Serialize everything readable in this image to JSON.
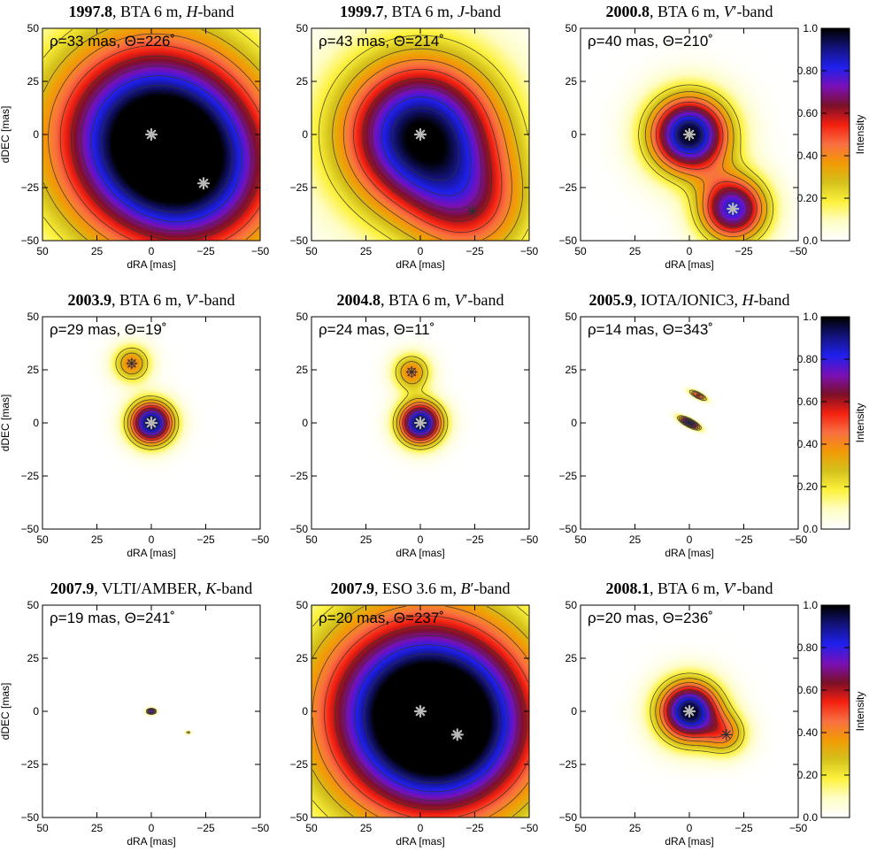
{
  "chart_data": [
    {
      "type": "heatmap",
      "row": 0,
      "col": 0,
      "title": {
        "epoch": "1997.8",
        "rest": ", BTA 6 m, ",
        "band_letter": "H",
        "band_suffix": "-band"
      },
      "annotation": "ρ=33 mas, Θ=226˚",
      "xlabel": "dRA [mas]",
      "ylabel": "dDEC [mas]",
      "xlim": [
        50,
        -50
      ],
      "ylim": [
        -50,
        50
      ],
      "xticks": [
        50,
        25,
        0,
        -25,
        -50
      ],
      "yticks": [
        -50,
        -25,
        0,
        25,
        50
      ],
      "components": [
        {
          "x": 0,
          "y": 0,
          "flux": 1.0,
          "width": 34
        },
        {
          "x": -24,
          "y": -23,
          "flux": 0.45,
          "width": 30
        }
      ],
      "stars": [
        {
          "x": 0,
          "y": 0,
          "style": "grey"
        },
        {
          "x": -24,
          "y": -23,
          "style": "grey"
        }
      ],
      "levels": [
        0.2,
        0.3,
        0.4,
        0.5,
        0.6,
        0.7,
        0.8,
        0.9
      ]
    },
    {
      "type": "heatmap",
      "row": 0,
      "col": 1,
      "title": {
        "epoch": "1999.7",
        "rest": ", BTA 6 m, ",
        "band_letter": "J",
        "band_suffix": "-band"
      },
      "annotation": "ρ=43 mas, Θ=214˚",
      "xlabel": "dRA [mas]",
      "ylabel": "",
      "xlim": [
        50,
        -50
      ],
      "ylim": [
        -50,
        50
      ],
      "xticks": [
        50,
        25,
        0,
        -25,
        -50
      ],
      "yticks": [
        -50,
        -25,
        0,
        25,
        50
      ],
      "components": [
        {
          "x": 0,
          "y": 0,
          "flux": 1.0,
          "width": 26
        },
        {
          "x": -24,
          "y": -36,
          "flux": 0.4,
          "width": 20
        }
      ],
      "stars": [
        {
          "x": 0,
          "y": 0,
          "style": "grey"
        },
        {
          "x": -24,
          "y": -36,
          "style": "dark"
        }
      ],
      "levels": [
        0.2,
        0.3,
        0.4,
        0.5,
        0.6,
        0.7,
        0.8,
        0.9
      ]
    },
    {
      "type": "heatmap",
      "row": 0,
      "col": 2,
      "title": {
        "epoch": "2000.8",
        "rest": ", BTA 6 m, ",
        "band_letter": "V",
        "band_suffix": "′-band"
      },
      "annotation": "ρ=40 mas, Θ=210˚",
      "xlabel": "dRA [mas]",
      "ylabel": "",
      "xlim": [
        50,
        -50
      ],
      "ylim": [
        -50,
        50
      ],
      "xticks": [
        50,
        25,
        0,
        -25,
        -50
      ],
      "yticks": [
        -50,
        -25,
        0,
        25,
        50
      ],
      "components": [
        {
          "x": 0,
          "y": 0,
          "flux": 1.0,
          "width": 13
        },
        {
          "x": -20,
          "y": -35,
          "flux": 0.82,
          "width": 11
        }
      ],
      "stars": [
        {
          "x": 0,
          "y": 0,
          "style": "grey"
        },
        {
          "x": -20,
          "y": -35,
          "style": "grey"
        }
      ],
      "levels": [
        0.2,
        0.3,
        0.4,
        0.5,
        0.6,
        0.7,
        0.8,
        0.9
      ]
    },
    {
      "type": "heatmap",
      "row": 1,
      "col": 0,
      "title": {
        "epoch": "2003.9",
        "rest": ", BTA 6 m, ",
        "band_letter": "V",
        "band_suffix": "′-band"
      },
      "annotation": "ρ=29 mas, Θ=19˚",
      "xlabel": "dRA [mas]",
      "ylabel": "dDEC [mas]",
      "xlim": [
        50,
        -50
      ],
      "ylim": [
        -50,
        50
      ],
      "xticks": [
        50,
        25,
        0,
        -25,
        -50
      ],
      "yticks": [
        -50,
        -25,
        0,
        25,
        50
      ],
      "components": [
        {
          "x": 0,
          "y": 0,
          "flux": 1.0,
          "width": 7
        },
        {
          "x": 9,
          "y": 28,
          "flux": 0.42,
          "width": 6
        }
      ],
      "stars": [
        {
          "x": 0,
          "y": 0,
          "style": "grey"
        },
        {
          "x": 9,
          "y": 28,
          "style": "dark"
        }
      ],
      "levels": [
        0.2,
        0.3,
        0.4,
        0.5,
        0.6,
        0.7,
        0.8,
        0.9
      ]
    },
    {
      "type": "heatmap",
      "row": 1,
      "col": 1,
      "title": {
        "epoch": "2004.8",
        "rest": ", BTA 6 m, ",
        "band_letter": "V",
        "band_suffix": "′-band"
      },
      "annotation": "ρ=24 mas, Θ=11˚",
      "xlabel": "dRA [mas]",
      "ylabel": "",
      "xlim": [
        50,
        -50
      ],
      "ylim": [
        -50,
        50
      ],
      "xticks": [
        50,
        25,
        0,
        -25,
        -50
      ],
      "yticks": [
        -50,
        -25,
        0,
        25,
        50
      ],
      "components": [
        {
          "x": 0,
          "y": 0,
          "flux": 1.0,
          "width": 7
        },
        {
          "x": 4,
          "y": 24,
          "flux": 0.42,
          "width": 6
        }
      ],
      "stars": [
        {
          "x": 0,
          "y": 0,
          "style": "grey"
        },
        {
          "x": 4,
          "y": 24,
          "style": "dark"
        }
      ],
      "levels": [
        0.2,
        0.3,
        0.4,
        0.5,
        0.6,
        0.7,
        0.8,
        0.9
      ]
    },
    {
      "type": "heatmap",
      "row": 1,
      "col": 2,
      "title": {
        "epoch": "2005.9",
        "rest": ", IOTA/IONIC3, ",
        "band_letter": "H",
        "band_suffix": "-band"
      },
      "annotation": "ρ=14 mas, Θ=343˚",
      "xlabel": "dRA [mas]",
      "ylabel": "",
      "xlim": [
        50,
        -50
      ],
      "ylim": [
        -50,
        50
      ],
      "xticks": [
        50,
        25,
        0,
        -25,
        -50
      ],
      "yticks": [
        -50,
        -25,
        0,
        25,
        50
      ],
      "components": [
        {
          "x": 0,
          "y": 0,
          "flux": 1.0,
          "width": 3.5,
          "elong": 3.2,
          "angle": -28
        },
        {
          "x": -4,
          "y": 13,
          "flux": 0.6,
          "width": 3,
          "elong": 3.2,
          "angle": -28
        }
      ],
      "stars": [],
      "levels": [
        0.2,
        0.3,
        0.4,
        0.5,
        0.6,
        0.7,
        0.8,
        0.9
      ]
    },
    {
      "type": "heatmap",
      "row": 2,
      "col": 0,
      "title": {
        "epoch": "2007.9",
        "rest": ", VLTI/AMBER, ",
        "band_letter": "K",
        "band_suffix": "-band"
      },
      "annotation": "ρ=19 mas, Θ=241˚",
      "xlabel": "dRA [mas]",
      "ylabel": "dDEC [mas]",
      "xlim": [
        50,
        -50
      ],
      "ylim": [
        -50,
        50
      ],
      "xticks": [
        50,
        25,
        0,
        -25,
        -50
      ],
      "yticks": [
        -50,
        -25,
        0,
        25,
        50
      ],
      "components": [
        {
          "x": 0,
          "y": 0,
          "flux": 1.0,
          "width": 1.3,
          "elong": 1.6,
          "angle": 0
        },
        {
          "x": -17,
          "y": -10,
          "flux": 0.32,
          "width": 0.9,
          "elong": 1.6,
          "angle": 0
        }
      ],
      "stars": [],
      "levels": [
        0.2,
        0.3,
        0.4,
        0.5,
        0.6,
        0.7,
        0.8,
        0.9
      ]
    },
    {
      "type": "heatmap",
      "row": 2,
      "col": 1,
      "title": {
        "epoch": "2007.9",
        "rest": ", ESO 3.6 m, ",
        "band_letter": "B",
        "band_suffix": "′-band"
      },
      "annotation": "ρ=20 mas, Θ=237˚",
      "xlabel": "dRA [mas]",
      "ylabel": "",
      "xlim": [
        50,
        -50
      ],
      "ylim": [
        -50,
        50
      ],
      "xticks": [
        50,
        25,
        0,
        -25,
        -50
      ],
      "yticks": [
        -50,
        -25,
        0,
        25,
        50
      ],
      "components": [
        {
          "x": 0,
          "y": 0,
          "flux": 1.0,
          "width": 35
        },
        {
          "x": -17,
          "y": -11,
          "flux": 0.4,
          "width": 30
        }
      ],
      "stars": [
        {
          "x": 0,
          "y": 0,
          "style": "grey"
        },
        {
          "x": -17,
          "y": -11,
          "style": "grey"
        }
      ],
      "levels": [
        0.2,
        0.3,
        0.4,
        0.5,
        0.6,
        0.7,
        0.8,
        0.9
      ]
    },
    {
      "type": "heatmap",
      "row": 2,
      "col": 2,
      "title": {
        "epoch": "2008.1",
        "rest": ", BTA 6 m, ",
        "band_letter": "V",
        "band_suffix": "′-band"
      },
      "annotation": "ρ=20 mas, Θ=236˚",
      "xlabel": "dRA [mas]",
      "ylabel": "",
      "xlim": [
        50,
        -50
      ],
      "ylim": [
        -50,
        50
      ],
      "xticks": [
        50,
        25,
        0,
        -25,
        -50
      ],
      "yticks": [
        -50,
        -25,
        0,
        25,
        50
      ],
      "components": [
        {
          "x": 0,
          "y": 0,
          "flux": 1.0,
          "width": 10
        },
        {
          "x": -17,
          "y": -11,
          "flux": 0.35,
          "width": 7
        }
      ],
      "stars": [
        {
          "x": 0,
          "y": 0,
          "style": "grey"
        },
        {
          "x": -17,
          "y": -11,
          "style": "dark"
        }
      ],
      "levels": [
        0.2,
        0.3,
        0.4,
        0.5,
        0.6,
        0.7,
        0.8,
        0.9
      ]
    }
  ],
  "colorbar": {
    "label": "Intensity",
    "ticks": [
      "0.0",
      "0.20",
      "0.40",
      "0.60",
      "0.80",
      "1.0"
    ],
    "range": [
      0,
      1
    ]
  },
  "colormap": [
    "#ffffff",
    "#fefdc4",
    "#fdf23c",
    "#d4c21c",
    "#f29b05",
    "#f87042",
    "#f52010",
    "#7a1028",
    "#7a10b8",
    "#2020ee",
    "#141480",
    "#000000"
  ]
}
